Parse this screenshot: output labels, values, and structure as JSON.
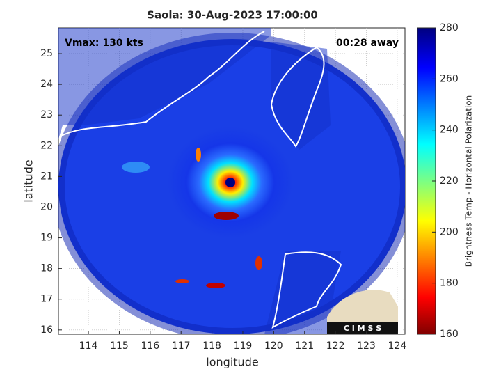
{
  "chart_data": {
    "type": "map",
    "title": "Saola: 30-Aug-2023 17:00:00",
    "annotations": [
      "Vmax: 130 kts",
      "00:28 away"
    ],
    "xlabel": "longitude",
    "ylabel": "latitude",
    "xlim": [
      113.03,
      124.25
    ],
    "ylim": [
      15.86,
      25.84
    ],
    "xticks": [
      114,
      115,
      116,
      117,
      118,
      119,
      120,
      121,
      122,
      123,
      124
    ],
    "yticks": [
      16,
      17,
      18,
      19,
      20,
      21,
      22,
      23,
      24,
      25
    ],
    "grid": true,
    "colorbar": {
      "label": "Brightness Temp - Horizontal Polarization",
      "lim": [
        160,
        280
      ],
      "ticks": [
        160,
        180,
        200,
        220,
        240,
        260,
        280
      ]
    },
    "logo_text": "C I M S S"
  }
}
